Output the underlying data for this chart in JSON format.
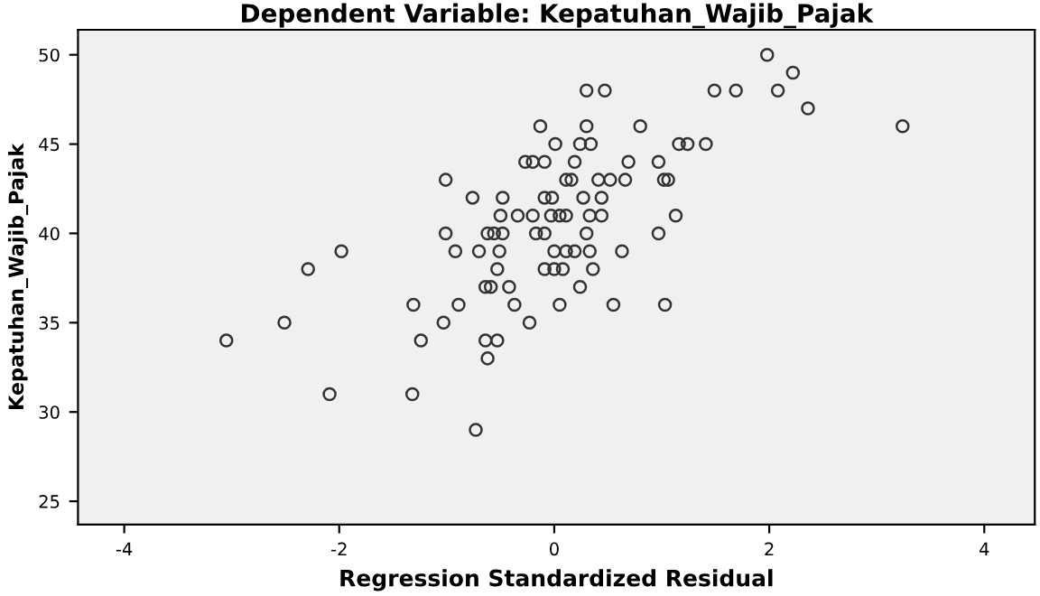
{
  "chart_data": {
    "type": "scatter",
    "title": "Dependent Variable: Kepatuhan_Wajib_Pajak",
    "xlabel": "Regression Standardized Residual",
    "ylabel": "Kepatuhan_Wajib_Pajak",
    "x": [
      1.98,
      2.22,
      0.3,
      0.47,
      1.49,
      1.69,
      2.08,
      2.36,
      -0.13,
      0.3,
      0.8,
      3.24,
      0.01,
      0.24,
      0.34,
      1.16,
      1.24,
      1.41,
      -0.27,
      -0.2,
      -0.09,
      0.19,
      0.69,
      0.97,
      -1.01,
      0.11,
      0.16,
      0.41,
      0.52,
      0.66,
      1.02,
      1.06,
      -0.76,
      -0.48,
      -0.09,
      -0.02,
      0.27,
      0.44,
      -0.5,
      -0.34,
      -0.2,
      -0.03,
      0.05,
      0.11,
      0.33,
      0.44,
      1.13,
      -1.01,
      -0.62,
      -0.56,
      -0.48,
      -0.17,
      -0.09,
      0.3,
      0.97,
      -1.98,
      -0.92,
      -0.7,
      -0.51,
      0.0,
      0.11,
      0.19,
      0.33,
      0.63,
      -2.29,
      -0.53,
      -0.09,
      0.0,
      0.08,
      0.36,
      -0.64,
      -0.59,
      -0.42,
      0.24,
      -1.31,
      -0.89,
      -0.37,
      0.05,
      0.55,
      1.03,
      -2.51,
      -1.03,
      -0.23,
      -3.05,
      -1.24,
      -0.64,
      -0.53,
      -0.62,
      -2.09,
      -1.32,
      -0.73
    ],
    "values": [
      50,
      49,
      48,
      48,
      48,
      48,
      48,
      47,
      46,
      46,
      46,
      46,
      45,
      45,
      45,
      45,
      45,
      45,
      44,
      44,
      44,
      44,
      44,
      44,
      43,
      43,
      43,
      43,
      43,
      43,
      43,
      43,
      42,
      42,
      42,
      42,
      42,
      42,
      41,
      41,
      41,
      41,
      41,
      41,
      41,
      41,
      41,
      40,
      40,
      40,
      40,
      40,
      40,
      40,
      40,
      39,
      39,
      39,
      39,
      39,
      39,
      39,
      39,
      39,
      38,
      38,
      38,
      38,
      38,
      38,
      37,
      37,
      37,
      37,
      36,
      36,
      36,
      36,
      36,
      36,
      35,
      35,
      35,
      34,
      34,
      34,
      34,
      33,
      31,
      31,
      29
    ],
    "color": "#333333",
    "marker": "circle",
    "xlim": [
      -4.43,
      4.47
    ],
    "ylim": [
      23.7,
      51.4
    ],
    "xticks": [
      -4,
      -2,
      0,
      2,
      4
    ],
    "yticks": [
      25,
      30,
      35,
      40,
      45,
      50
    ],
    "grid": false
  }
}
